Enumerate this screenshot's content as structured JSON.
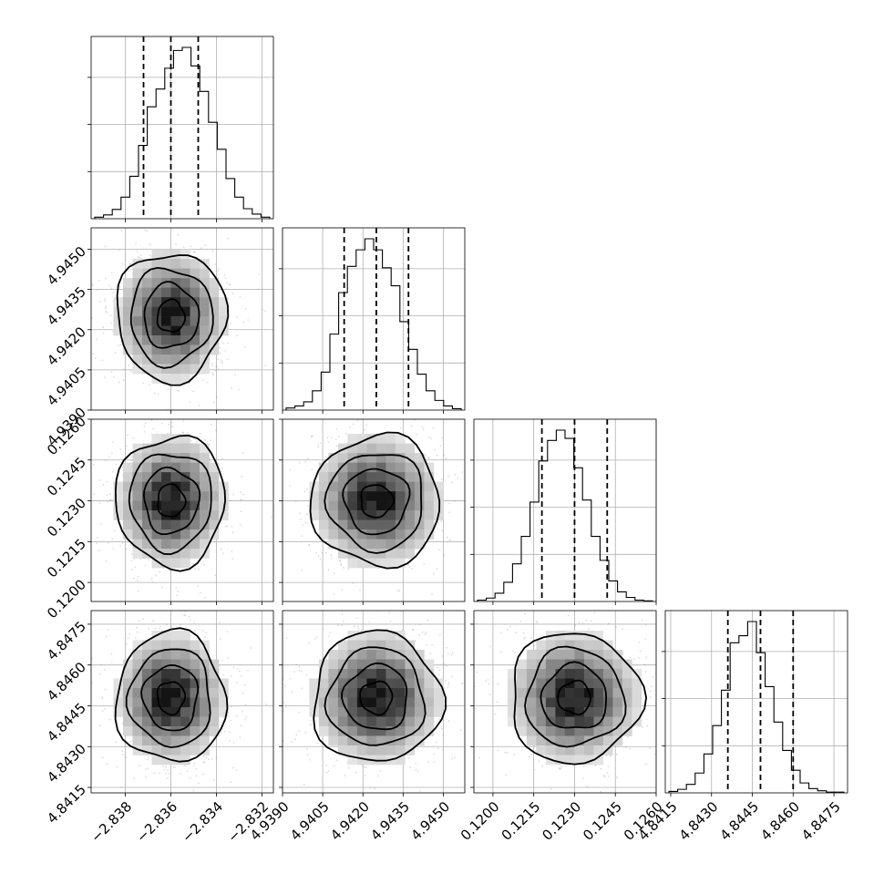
{
  "chart_data": {
    "type": "corner",
    "parameters": [
      {
        "range": [
          -2.8395,
          -2.8315
        ],
        "ticks": [
          -2.838,
          -2.836,
          -2.834,
          -2.832
        ],
        "tick_labels": [
          "−2.838",
          "−2.836",
          "−2.834",
          "−2.832"
        ],
        "histogram_counts": [
          2,
          5,
          12,
          28,
          55,
          95,
          145,
          168,
          195,
          218,
          222,
          198,
          165,
          125,
          90,
          52,
          28,
          13,
          6,
          2
        ],
        "quantiles": [
          -2.8372,
          -2.836,
          -2.8348
        ]
      },
      {
        "range": [
          4.939,
          4.9458
        ],
        "ticks": [
          4.939,
          4.9405,
          4.942,
          4.9435,
          4.945
        ],
        "tick_labels": [
          "4.9390",
          "4.9405",
          "4.9420",
          "4.9435",
          "4.9450"
        ],
        "histogram_counts": [
          3,
          6,
          12,
          28,
          55,
          110,
          170,
          208,
          232,
          248,
          232,
          206,
          180,
          128,
          88,
          52,
          28,
          14,
          6,
          2
        ],
        "quantiles": [
          4.9413,
          4.9425,
          4.9437
        ]
      },
      {
        "range": [
          0.1193,
          0.126
        ],
        "ticks": [
          0.12,
          0.1215,
          0.123,
          0.1245,
          0.126
        ],
        "tick_labels": [
          "0.1200",
          "0.1215",
          "0.1230",
          "0.1245",
          "0.1260"
        ],
        "histogram_counts": [
          2,
          5,
          12,
          28,
          55,
          95,
          145,
          205,
          235,
          250,
          238,
          195,
          148,
          95,
          60,
          30,
          14,
          6,
          2,
          1
        ],
        "quantiles": [
          0.1218,
          0.123,
          0.1242
        ]
      },
      {
        "range": [
          4.8413,
          4.848
        ],
        "ticks": [
          4.8415,
          4.843,
          4.8445,
          4.846,
          4.8475
        ],
        "tick_labels": [
          "4.8415",
          "4.8430",
          "4.8445",
          "4.8460",
          "4.8475"
        ],
        "histogram_counts": [
          2,
          5,
          12,
          28,
          55,
          95,
          145,
          212,
          222,
          242,
          198,
          150,
          100,
          60,
          32,
          14,
          6,
          3,
          1,
          1
        ],
        "quantiles": [
          4.8436,
          4.8448,
          4.846
        ]
      }
    ],
    "correlations": [
      [
        1,
        0
      ],
      [
        2,
        0
      ],
      [
        2,
        1
      ],
      [
        3,
        0
      ],
      [
        3,
        1
      ],
      [
        3,
        2
      ]
    ],
    "sigma_scale": 1.0,
    "contour_levels_sigma": [
      0.5,
      1.0,
      1.5,
      2.0
    ],
    "grid": true,
    "colors": {
      "line": "#000000",
      "grid": "#b0b0b0",
      "points": "#888888"
    }
  }
}
